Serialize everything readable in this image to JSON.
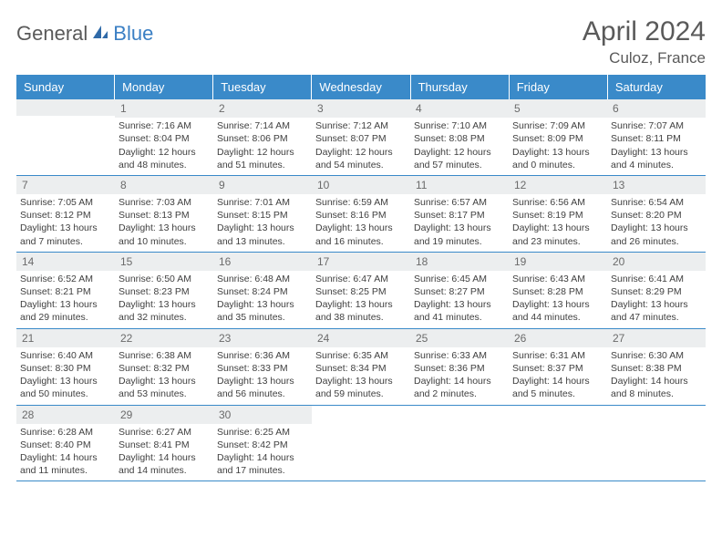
{
  "logo": {
    "general": "General",
    "blue": "Blue"
  },
  "title": {
    "month": "April 2024",
    "location": "Culoz, France"
  },
  "colors": {
    "header_bg": "#3a8ac9",
    "header_text": "#ffffff",
    "daynum_bg": "#eceeef",
    "daynum_text": "#6b6b6b",
    "body_text": "#404040",
    "rule": "#3a8ac9",
    "logo_gray": "#5a5a5a",
    "logo_blue": "#3a7fc4"
  },
  "fonts": {
    "title_size": 30,
    "location_size": 17,
    "dayhdr_size": 13,
    "daynum_size": 12,
    "cell_size": 10.5
  },
  "day_headers": [
    "Sunday",
    "Monday",
    "Tuesday",
    "Wednesday",
    "Thursday",
    "Friday",
    "Saturday"
  ],
  "weeks": [
    [
      null,
      {
        "n": "1",
        "sunrise": "Sunrise: 7:16 AM",
        "sunset": "Sunset: 8:04 PM",
        "day1": "Daylight: 12 hours",
        "day2": "and 48 minutes."
      },
      {
        "n": "2",
        "sunrise": "Sunrise: 7:14 AM",
        "sunset": "Sunset: 8:06 PM",
        "day1": "Daylight: 12 hours",
        "day2": "and 51 minutes."
      },
      {
        "n": "3",
        "sunrise": "Sunrise: 7:12 AM",
        "sunset": "Sunset: 8:07 PM",
        "day1": "Daylight: 12 hours",
        "day2": "and 54 minutes."
      },
      {
        "n": "4",
        "sunrise": "Sunrise: 7:10 AM",
        "sunset": "Sunset: 8:08 PM",
        "day1": "Daylight: 12 hours",
        "day2": "and 57 minutes."
      },
      {
        "n": "5",
        "sunrise": "Sunrise: 7:09 AM",
        "sunset": "Sunset: 8:09 PM",
        "day1": "Daylight: 13 hours",
        "day2": "and 0 minutes."
      },
      {
        "n": "6",
        "sunrise": "Sunrise: 7:07 AM",
        "sunset": "Sunset: 8:11 PM",
        "day1": "Daylight: 13 hours",
        "day2": "and 4 minutes."
      }
    ],
    [
      {
        "n": "7",
        "sunrise": "Sunrise: 7:05 AM",
        "sunset": "Sunset: 8:12 PM",
        "day1": "Daylight: 13 hours",
        "day2": "and 7 minutes."
      },
      {
        "n": "8",
        "sunrise": "Sunrise: 7:03 AM",
        "sunset": "Sunset: 8:13 PM",
        "day1": "Daylight: 13 hours",
        "day2": "and 10 minutes."
      },
      {
        "n": "9",
        "sunrise": "Sunrise: 7:01 AM",
        "sunset": "Sunset: 8:15 PM",
        "day1": "Daylight: 13 hours",
        "day2": "and 13 minutes."
      },
      {
        "n": "10",
        "sunrise": "Sunrise: 6:59 AM",
        "sunset": "Sunset: 8:16 PM",
        "day1": "Daylight: 13 hours",
        "day2": "and 16 minutes."
      },
      {
        "n": "11",
        "sunrise": "Sunrise: 6:57 AM",
        "sunset": "Sunset: 8:17 PM",
        "day1": "Daylight: 13 hours",
        "day2": "and 19 minutes."
      },
      {
        "n": "12",
        "sunrise": "Sunrise: 6:56 AM",
        "sunset": "Sunset: 8:19 PM",
        "day1": "Daylight: 13 hours",
        "day2": "and 23 minutes."
      },
      {
        "n": "13",
        "sunrise": "Sunrise: 6:54 AM",
        "sunset": "Sunset: 8:20 PM",
        "day1": "Daylight: 13 hours",
        "day2": "and 26 minutes."
      }
    ],
    [
      {
        "n": "14",
        "sunrise": "Sunrise: 6:52 AM",
        "sunset": "Sunset: 8:21 PM",
        "day1": "Daylight: 13 hours",
        "day2": "and 29 minutes."
      },
      {
        "n": "15",
        "sunrise": "Sunrise: 6:50 AM",
        "sunset": "Sunset: 8:23 PM",
        "day1": "Daylight: 13 hours",
        "day2": "and 32 minutes."
      },
      {
        "n": "16",
        "sunrise": "Sunrise: 6:48 AM",
        "sunset": "Sunset: 8:24 PM",
        "day1": "Daylight: 13 hours",
        "day2": "and 35 minutes."
      },
      {
        "n": "17",
        "sunrise": "Sunrise: 6:47 AM",
        "sunset": "Sunset: 8:25 PM",
        "day1": "Daylight: 13 hours",
        "day2": "and 38 minutes."
      },
      {
        "n": "18",
        "sunrise": "Sunrise: 6:45 AM",
        "sunset": "Sunset: 8:27 PM",
        "day1": "Daylight: 13 hours",
        "day2": "and 41 minutes."
      },
      {
        "n": "19",
        "sunrise": "Sunrise: 6:43 AM",
        "sunset": "Sunset: 8:28 PM",
        "day1": "Daylight: 13 hours",
        "day2": "and 44 minutes."
      },
      {
        "n": "20",
        "sunrise": "Sunrise: 6:41 AM",
        "sunset": "Sunset: 8:29 PM",
        "day1": "Daylight: 13 hours",
        "day2": "and 47 minutes."
      }
    ],
    [
      {
        "n": "21",
        "sunrise": "Sunrise: 6:40 AM",
        "sunset": "Sunset: 8:30 PM",
        "day1": "Daylight: 13 hours",
        "day2": "and 50 minutes."
      },
      {
        "n": "22",
        "sunrise": "Sunrise: 6:38 AM",
        "sunset": "Sunset: 8:32 PM",
        "day1": "Daylight: 13 hours",
        "day2": "and 53 minutes."
      },
      {
        "n": "23",
        "sunrise": "Sunrise: 6:36 AM",
        "sunset": "Sunset: 8:33 PM",
        "day1": "Daylight: 13 hours",
        "day2": "and 56 minutes."
      },
      {
        "n": "24",
        "sunrise": "Sunrise: 6:35 AM",
        "sunset": "Sunset: 8:34 PM",
        "day1": "Daylight: 13 hours",
        "day2": "and 59 minutes."
      },
      {
        "n": "25",
        "sunrise": "Sunrise: 6:33 AM",
        "sunset": "Sunset: 8:36 PM",
        "day1": "Daylight: 14 hours",
        "day2": "and 2 minutes."
      },
      {
        "n": "26",
        "sunrise": "Sunrise: 6:31 AM",
        "sunset": "Sunset: 8:37 PM",
        "day1": "Daylight: 14 hours",
        "day2": "and 5 minutes."
      },
      {
        "n": "27",
        "sunrise": "Sunrise: 6:30 AM",
        "sunset": "Sunset: 8:38 PM",
        "day1": "Daylight: 14 hours",
        "day2": "and 8 minutes."
      }
    ],
    [
      {
        "n": "28",
        "sunrise": "Sunrise: 6:28 AM",
        "sunset": "Sunset: 8:40 PM",
        "day1": "Daylight: 14 hours",
        "day2": "and 11 minutes."
      },
      {
        "n": "29",
        "sunrise": "Sunrise: 6:27 AM",
        "sunset": "Sunset: 8:41 PM",
        "day1": "Daylight: 14 hours",
        "day2": "and 14 minutes."
      },
      {
        "n": "30",
        "sunrise": "Sunrise: 6:25 AM",
        "sunset": "Sunset: 8:42 PM",
        "day1": "Daylight: 14 hours",
        "day2": "and 17 minutes."
      },
      null,
      null,
      null,
      null
    ]
  ]
}
